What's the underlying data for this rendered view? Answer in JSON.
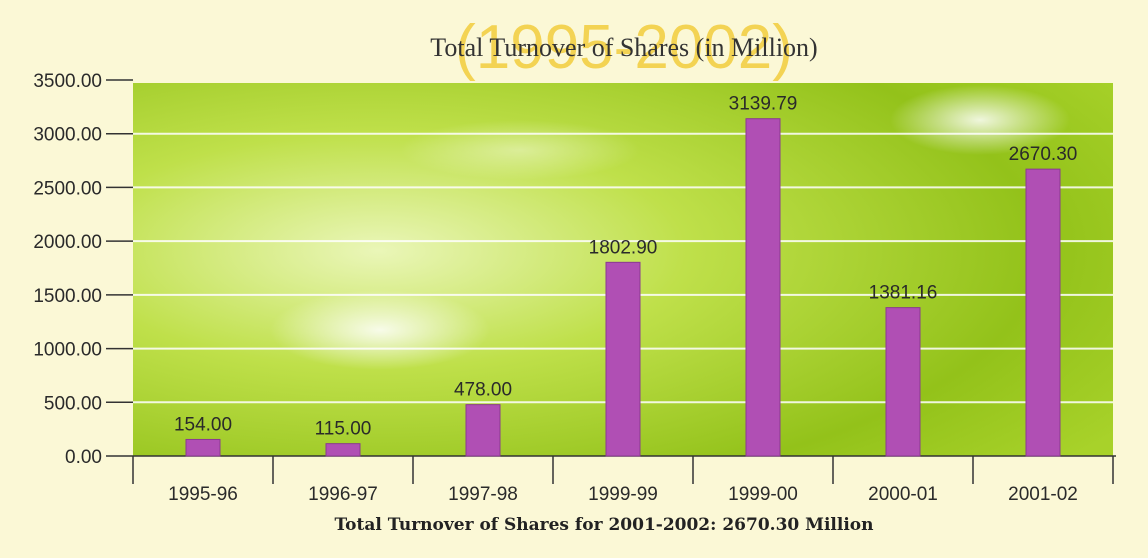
{
  "chart_data": {
    "type": "bar",
    "title": "Total Turnover of Shares (in Million)",
    "overlay_title": "(1995-2002)",
    "caption": "Total Turnover of Shares for 2001-2002: 2670.30 Million",
    "categories": [
      "1995-96",
      "1996-97",
      "1997-98",
      "1999-99",
      "1999-00",
      "2000-01",
      "2001-02"
    ],
    "values": [
      154.0,
      115.0,
      478.0,
      1802.9,
      3139.79,
      1381.16,
      2670.3
    ],
    "value_labels": [
      "154.00",
      "115.00",
      "478.00",
      "1802.90",
      "3139.79",
      "1381.16",
      "2670.30"
    ],
    "y_ticks": [
      0,
      500,
      1000,
      1500,
      2000,
      2500,
      3000,
      3500
    ],
    "y_tick_labels": [
      "0.00",
      "500.00",
      "1000.00",
      "1500.00",
      "2000.00",
      "2500.00",
      "3000.00",
      "3500.00"
    ],
    "ylim": [
      0,
      3500
    ],
    "grid": true,
    "legend": "none",
    "colors": {
      "bar": "#b04fb4",
      "bar_edge": "#8a3a8f",
      "plot_bg": "#9fcc1e",
      "plot_bg_light": "#e6f5b0",
      "overlay_title": "#f3cf45",
      "text": "#2a2a2a",
      "grid": "#ffffff"
    }
  }
}
